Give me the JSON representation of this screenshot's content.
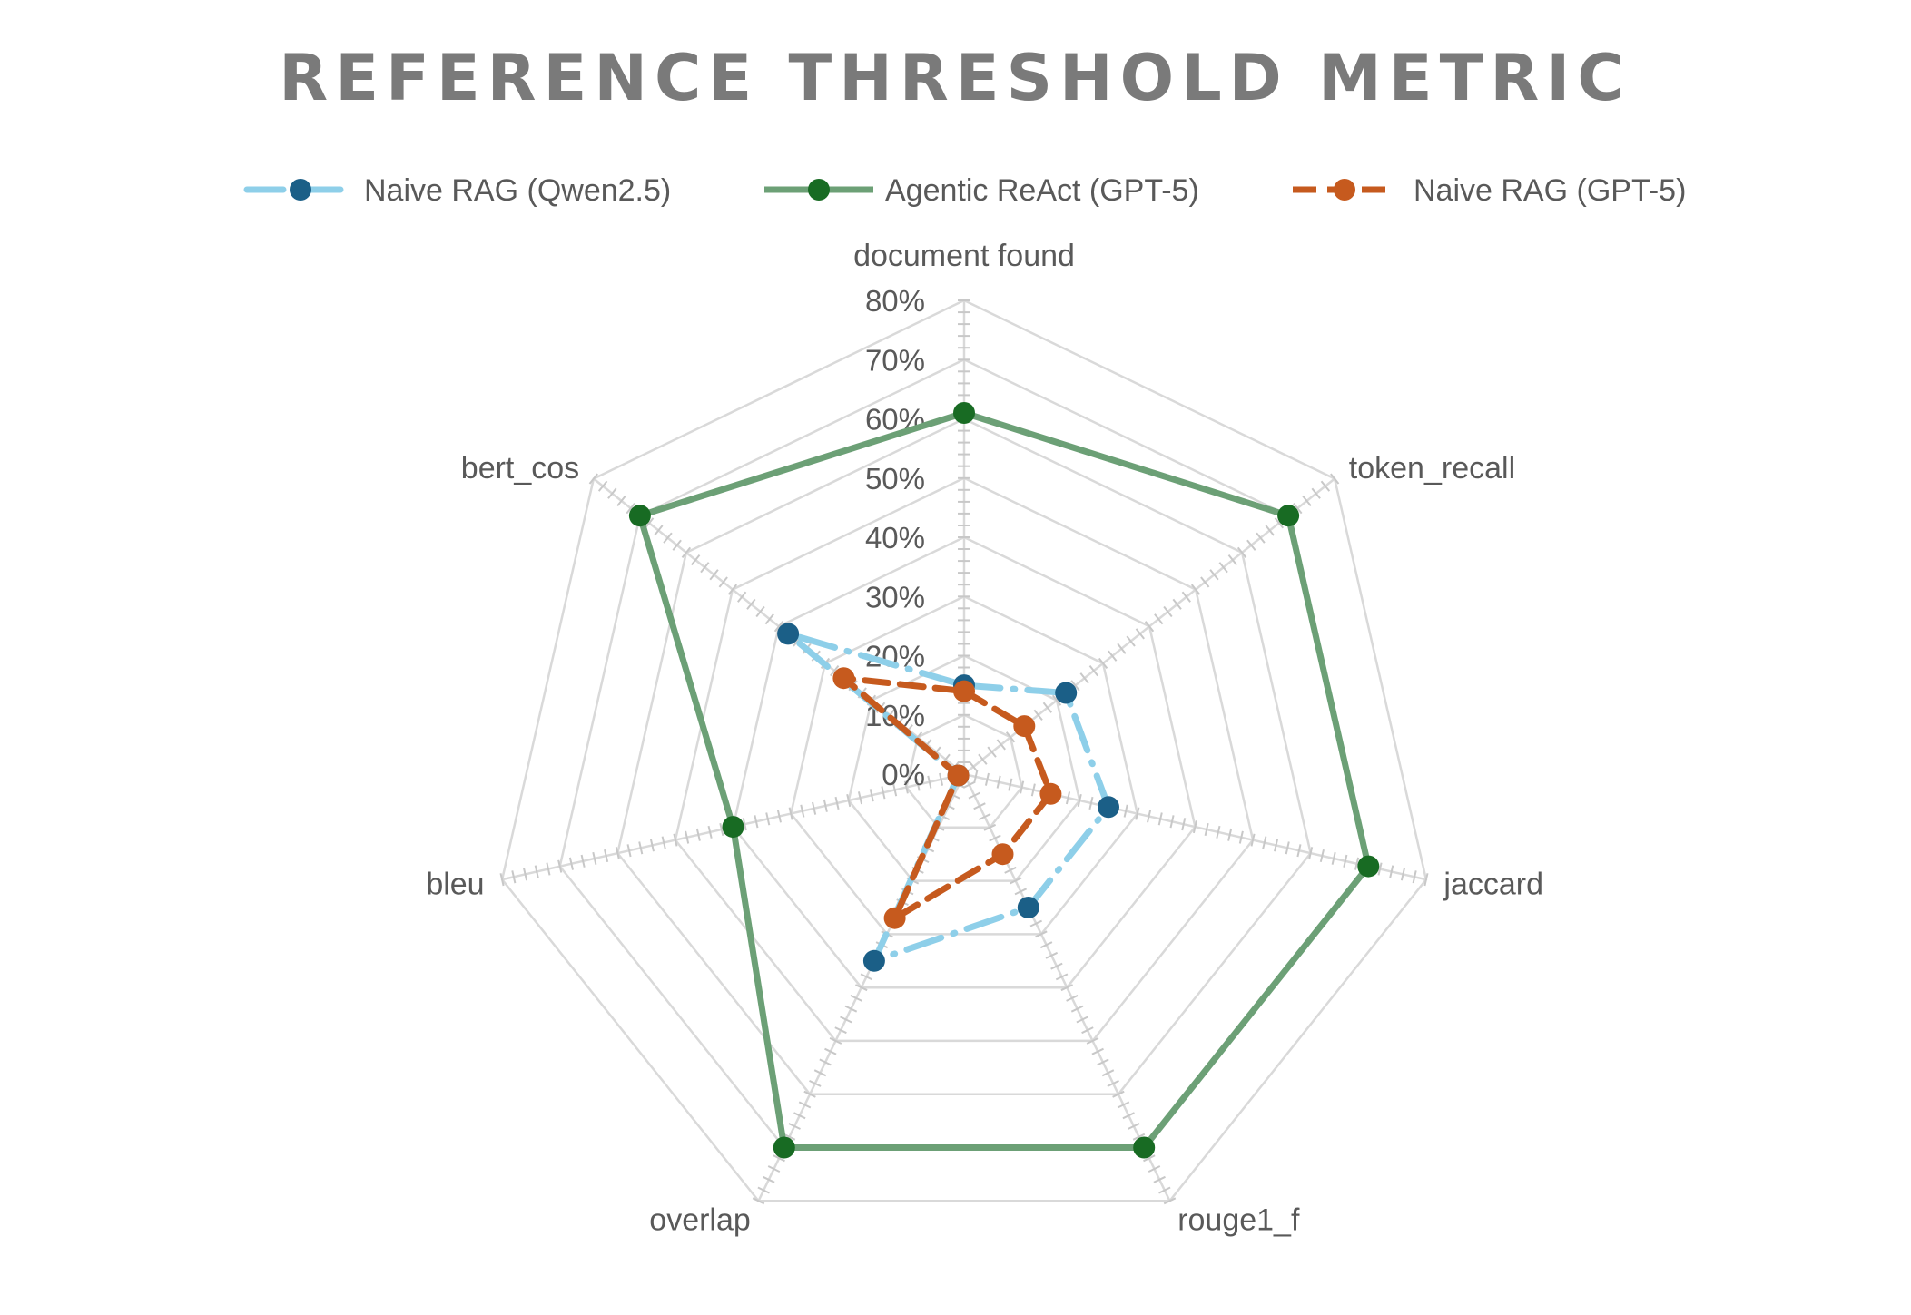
{
  "chart_data": {
    "type": "radar",
    "title": "REFERENCE THRESHOLD METRIC",
    "categories": [
      "document found",
      "token_recall",
      "jaccard",
      "rouge1_f",
      "overlap",
      "bleu",
      "bert_cos"
    ],
    "rlim": [
      0,
      80
    ],
    "ticks": [
      "0%",
      "10%",
      "20%",
      "30%",
      "40%",
      "50%",
      "60%",
      "70%",
      "80%"
    ],
    "tick_values": [
      0,
      10,
      20,
      30,
      40,
      50,
      60,
      70,
      80
    ],
    "grid": true,
    "legend_position": "top",
    "series": [
      {
        "name": "Naive RAG (Qwen2.5)",
        "values": [
          15,
          22,
          25,
          25,
          35,
          1,
          38
        ],
        "line_color": "#8ecfe9",
        "marker_color": "#1b5f87",
        "line_style": "long-dash-dot"
      },
      {
        "name": "Agentic ReAct (GPT-5)",
        "values": [
          61,
          70,
          70,
          70,
          70,
          40,
          70
        ],
        "line_color": "#6ca076",
        "marker_color": "#186b23",
        "line_style": "solid"
      },
      {
        "name": "Naive RAG (GPT-5)",
        "values": [
          14,
          13,
          15,
          15,
          27,
          1,
          26
        ],
        "line_color": "#c65a1e",
        "marker_color": "#c65a1e",
        "line_style": "dashed"
      }
    ]
  }
}
